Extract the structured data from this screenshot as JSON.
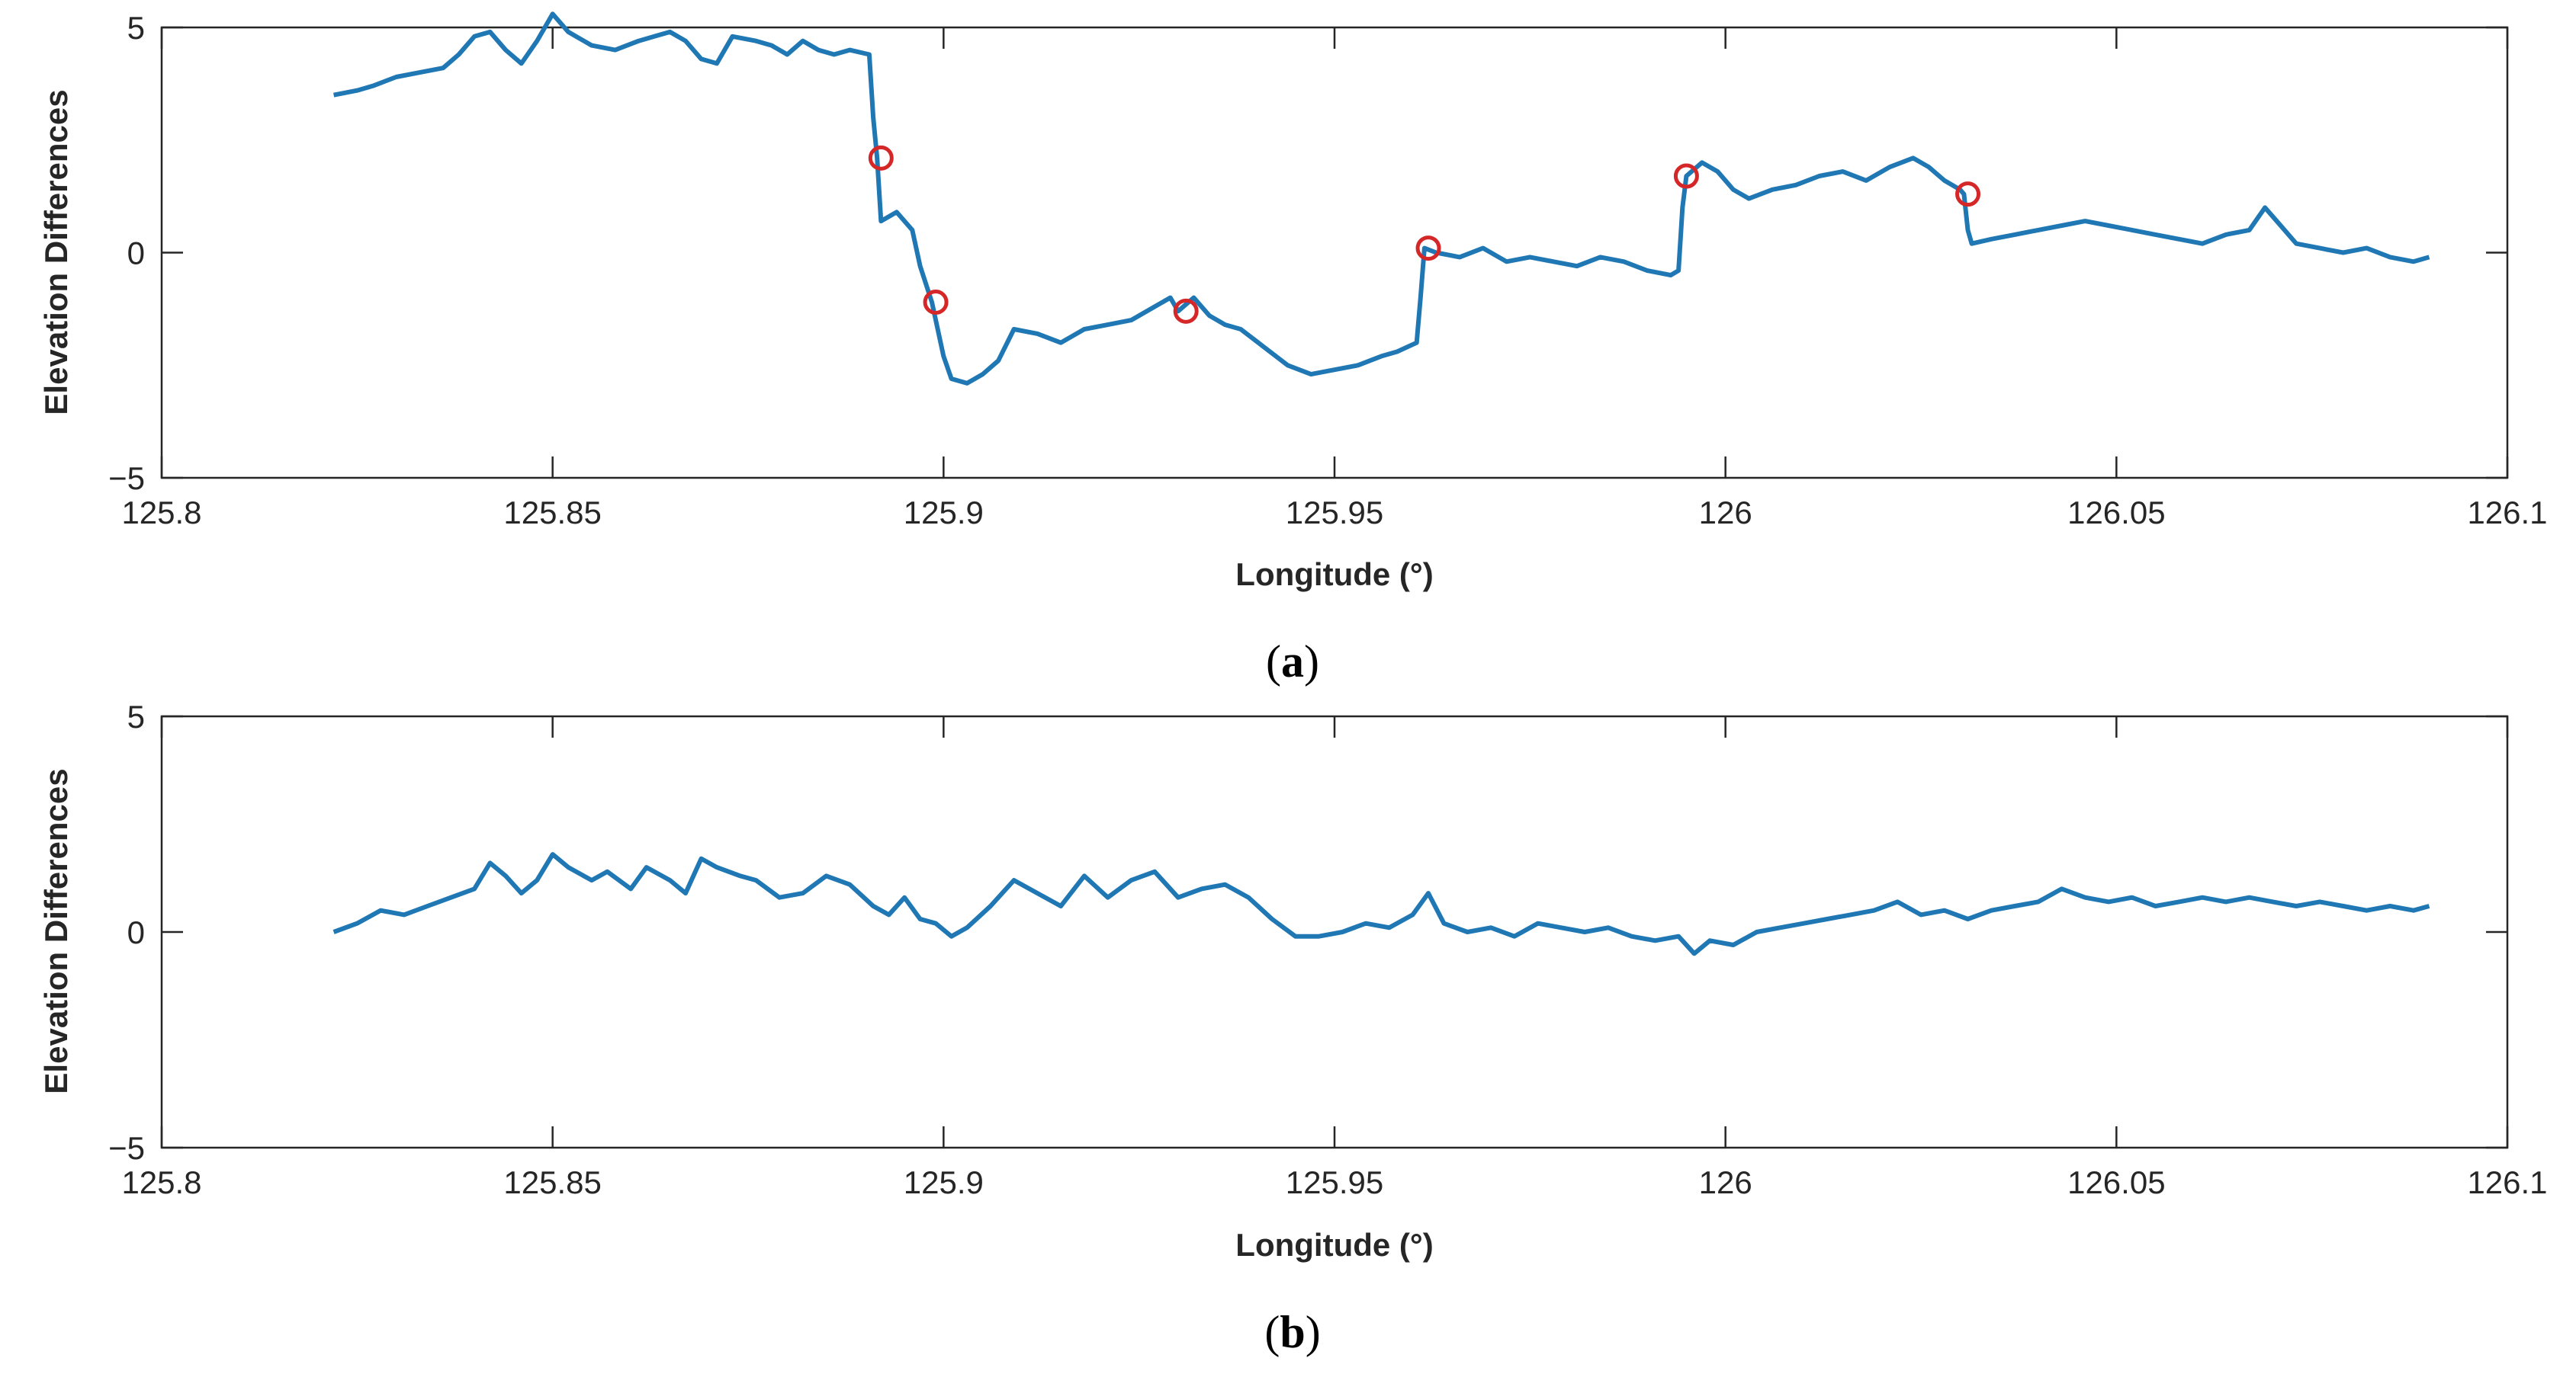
{
  "chart_data": [
    {
      "type": "line",
      "panel_label": {
        "open": "(",
        "letter": "a",
        "close": ")"
      },
      "xlabel": "Longitude (°)",
      "ylabel": "Elevation Differences",
      "xlim": [
        125.8,
        126.1
      ],
      "ylim": [
        -5,
        5
      ],
      "xticks": [
        125.8,
        125.85,
        125.9,
        125.95,
        126,
        126.05,
        126.1
      ],
      "xtick_labels": [
        "125.8",
        "125.85",
        "125.9",
        "125.95",
        "126",
        "126.05",
        "126.1"
      ],
      "yticks": [
        -5,
        0,
        5
      ],
      "ytick_labels": [
        "−5",
        "0",
        "5"
      ],
      "line_color": "#1f77b4",
      "marker_color": "#d62728",
      "series": [
        {
          "x": [
            125.822,
            125.825,
            125.827,
            125.83,
            125.833,
            125.836,
            125.838,
            125.84,
            125.842,
            125.844,
            125.846,
            125.848,
            125.85,
            125.852,
            125.855,
            125.858,
            125.861,
            125.863,
            125.865,
            125.867,
            125.869,
            125.871,
            125.873,
            125.876,
            125.878,
            125.88,
            125.882,
            125.884,
            125.886,
            125.888,
            125.8905,
            125.891,
            125.8915,
            125.892,
            125.894,
            125.896,
            125.897,
            125.8985,
            125.9,
            125.901,
            125.903,
            125.905,
            125.907,
            125.909,
            125.912,
            125.915,
            125.918,
            125.921,
            125.924,
            125.927,
            125.929,
            125.93,
            125.932,
            125.934,
            125.936,
            125.938,
            125.941,
            125.944,
            125.947,
            125.95,
            125.953,
            125.956,
            125.958,
            125.9605,
            125.961,
            125.9615,
            125.963,
            125.966,
            125.969,
            125.972,
            125.975,
            125.978,
            125.981,
            125.984,
            125.987,
            125.99,
            125.993,
            125.994,
            125.9945,
            125.995,
            125.997,
            125.999,
            126.001,
            126.003,
            126.006,
            126.009,
            126.012,
            126.015,
            126.018,
            126.021,
            126.024,
            126.026,
            126.028,
            126.03,
            126.0305,
            126.031,
            126.0315,
            126.034,
            126.037,
            126.04,
            126.043,
            126.046,
            126.049,
            126.052,
            126.055,
            126.058,
            126.061,
            126.064,
            126.067,
            126.069,
            126.071,
            126.073,
            126.076,
            126.079,
            126.082,
            126.085,
            126.088,
            126.09
          ],
          "y": [
            3.5,
            3.6,
            3.7,
            3.9,
            4.0,
            4.1,
            4.4,
            4.8,
            4.9,
            4.5,
            4.2,
            4.7,
            5.3,
            4.9,
            4.6,
            4.5,
            4.7,
            4.8,
            4.9,
            4.7,
            4.3,
            4.2,
            4.8,
            4.7,
            4.6,
            4.4,
            4.7,
            4.5,
            4.4,
            4.5,
            4.4,
            3.0,
            2.1,
            0.7,
            0.9,
            0.5,
            -0.3,
            -1.1,
            -2.3,
            -2.8,
            -2.9,
            -2.7,
            -2.4,
            -1.7,
            -1.8,
            -2.0,
            -1.7,
            -1.6,
            -1.5,
            -1.2,
            -1.0,
            -1.3,
            -1.0,
            -1.4,
            -1.6,
            -1.7,
            -2.1,
            -2.5,
            -2.7,
            -2.6,
            -2.5,
            -2.3,
            -2.2,
            -2.0,
            -1.0,
            0.1,
            0.0,
            -0.1,
            0.1,
            -0.2,
            -0.1,
            -0.2,
            -0.3,
            -0.1,
            -0.2,
            -0.4,
            -0.5,
            -0.4,
            1.0,
            1.7,
            2.0,
            1.8,
            1.4,
            1.2,
            1.4,
            1.5,
            1.7,
            1.8,
            1.6,
            1.9,
            2.1,
            1.9,
            1.6,
            1.4,
            1.3,
            0.5,
            0.2,
            0.3,
            0.4,
            0.5,
            0.6,
            0.7,
            0.6,
            0.5,
            0.4,
            0.3,
            0.2,
            0.4,
            0.5,
            1.0,
            0.6,
            0.2,
            0.1,
            0.0,
            0.1,
            -0.1,
            -0.2,
            -0.1
          ]
        }
      ],
      "markers": {
        "x": [
          125.892,
          125.899,
          125.931,
          125.962,
          125.995,
          126.031
        ],
        "y": [
          2.1,
          -1.1,
          -1.3,
          0.1,
          1.7,
          1.3
        ]
      }
    },
    {
      "type": "line",
      "panel_label": {
        "open": "(",
        "letter": "b",
        "close": ")"
      },
      "xlabel": "Longitude (°)",
      "ylabel": "Elevation Differences",
      "xlim": [
        125.8,
        126.1
      ],
      "ylim": [
        -5,
        5
      ],
      "xticks": [
        125.8,
        125.85,
        125.9,
        125.95,
        126,
        126.05,
        126.1
      ],
      "xtick_labels": [
        "125.8",
        "125.85",
        "125.9",
        "125.95",
        "126",
        "126.05",
        "126.1"
      ],
      "yticks": [
        -5,
        0,
        5
      ],
      "ytick_labels": [
        "−5",
        "0",
        "5"
      ],
      "line_color": "#1f77b4",
      "series": [
        {
          "x": [
            125.822,
            125.825,
            125.828,
            125.831,
            125.834,
            125.837,
            125.84,
            125.842,
            125.844,
            125.846,
            125.848,
            125.85,
            125.852,
            125.855,
            125.857,
            125.86,
            125.862,
            125.865,
            125.867,
            125.869,
            125.871,
            125.874,
            125.876,
            125.879,
            125.882,
            125.885,
            125.888,
            125.891,
            125.893,
            125.895,
            125.897,
            125.899,
            125.901,
            125.903,
            125.906,
            125.909,
            125.912,
            125.915,
            125.918,
            125.921,
            125.924,
            125.927,
            125.93,
            125.933,
            125.936,
            125.939,
            125.942,
            125.945,
            125.948,
            125.951,
            125.954,
            125.957,
            125.96,
            125.962,
            125.964,
            125.967,
            125.97,
            125.973,
            125.976,
            125.979,
            125.982,
            125.985,
            125.988,
            125.991,
            125.994,
            125.996,
            125.998,
            126.001,
            126.004,
            126.007,
            126.01,
            126.013,
            126.016,
            126.019,
            126.022,
            126.025,
            126.028,
            126.031,
            126.034,
            126.037,
            126.04,
            126.043,
            126.046,
            126.049,
            126.052,
            126.055,
            126.058,
            126.061,
            126.064,
            126.067,
            126.07,
            126.073,
            126.076,
            126.079,
            126.082,
            126.085,
            126.088,
            126.09
          ],
          "y": [
            0.0,
            0.2,
            0.5,
            0.4,
            0.6,
            0.8,
            1.0,
            1.6,
            1.3,
            0.9,
            1.2,
            1.8,
            1.5,
            1.2,
            1.4,
            1.0,
            1.5,
            1.2,
            0.9,
            1.7,
            1.5,
            1.3,
            1.2,
            0.8,
            0.9,
            1.3,
            1.1,
            0.6,
            0.4,
            0.8,
            0.3,
            0.2,
            -0.1,
            0.1,
            0.6,
            1.2,
            0.9,
            0.6,
            1.3,
            0.8,
            1.2,
            1.4,
            0.8,
            1.0,
            1.1,
            0.8,
            0.3,
            -0.1,
            -0.1,
            0.0,
            0.2,
            0.1,
            0.4,
            0.9,
            0.2,
            0.0,
            0.1,
            -0.1,
            0.2,
            0.1,
            0.0,
            0.1,
            -0.1,
            -0.2,
            -0.1,
            -0.5,
            -0.2,
            -0.3,
            0.0,
            0.1,
            0.2,
            0.3,
            0.4,
            0.5,
            0.7,
            0.4,
            0.5,
            0.3,
            0.5,
            0.6,
            0.7,
            1.0,
            0.8,
            0.7,
            0.8,
            0.6,
            0.7,
            0.8,
            0.7,
            0.8,
            0.7,
            0.6,
            0.7,
            0.6,
            0.5,
            0.6,
            0.5,
            0.6
          ]
        }
      ]
    }
  ]
}
